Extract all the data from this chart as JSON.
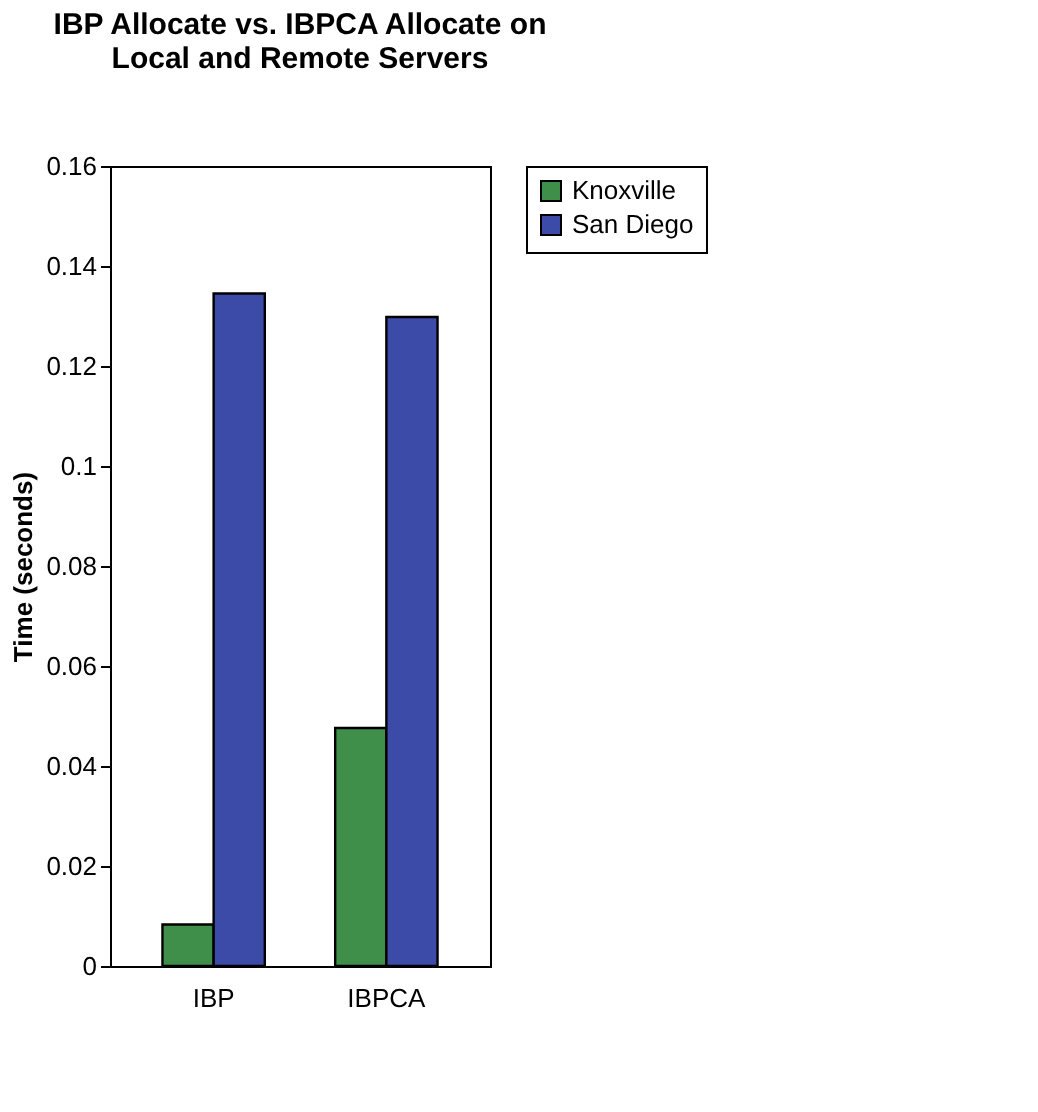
{
  "chart_data": {
    "type": "bar",
    "title": [
      "IBP Allocate vs. IBPCA Allocate on",
      "Local and Remote Servers"
    ],
    "ylabel": "Time (seconds)",
    "categories": [
      "IBP",
      "IBPCA"
    ],
    "series": [
      {
        "name": "Knoxville",
        "color": "#3f8f4a",
        "values": [
          0.0083,
          0.0476
        ]
      },
      {
        "name": "San Diego",
        "color": "#3c4ba8",
        "values": [
          0.1345,
          0.1298
        ]
      }
    ],
    "ylim": [
      0,
      0.16
    ],
    "yticks": [
      0,
      0.02,
      0.04,
      0.06,
      0.08,
      0.1,
      0.12,
      0.14,
      0.16
    ],
    "grid": false,
    "legend": "right"
  }
}
